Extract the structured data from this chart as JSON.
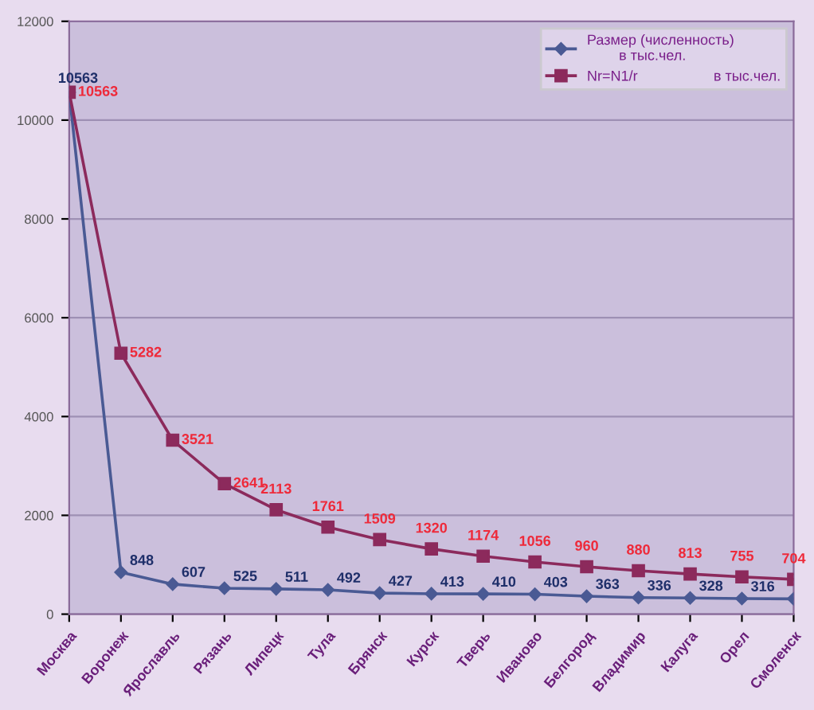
{
  "chart_data": {
    "type": "line",
    "categories": [
      "Москва",
      "Воронеж",
      "Ярославль",
      "Рязань",
      "Липецк",
      "Тула",
      "Брянск",
      "Курск",
      "Тверь",
      "Иваново",
      "Белгород",
      "Владимир",
      "Калуга",
      "Орел",
      "Смоленск"
    ],
    "series": [
      {
        "name": "Размер (численность)\n        в тыс.чел.",
        "color": "#4a5a94",
        "marker": "diamond",
        "values": [
          10563,
          848,
          607,
          525,
          511,
          492,
          427,
          413,
          410,
          403,
          363,
          336,
          328,
          316,
          310
        ],
        "value_labels": [
          "10563",
          "848",
          "607",
          "525",
          "511",
          "492",
          "427",
          "413",
          "410",
          "403",
          "363",
          "336",
          "328",
          "316",
          null
        ]
      },
      {
        "name": "Nr=N1/r                   в тыс.чел.",
        "color": "#8c2a5c",
        "marker": "square",
        "values": [
          10563,
          5282,
          3521,
          2641,
          2113,
          1761,
          1509,
          1320,
          1174,
          1056,
          960,
          880,
          813,
          755,
          704
        ],
        "value_labels": [
          "10563",
          "5282",
          "3521",
          "2641",
          "2113",
          "1761",
          "1509",
          "1320",
          "1174",
          "1056",
          "960",
          "880",
          "813",
          "755",
          "704"
        ]
      }
    ],
    "ylim": [
      0,
      12000
    ],
    "yticks": [
      0,
      2000,
      4000,
      6000,
      8000,
      10000,
      12000
    ],
    "grid": "y",
    "legend": "top right",
    "line_style": "solid"
  }
}
